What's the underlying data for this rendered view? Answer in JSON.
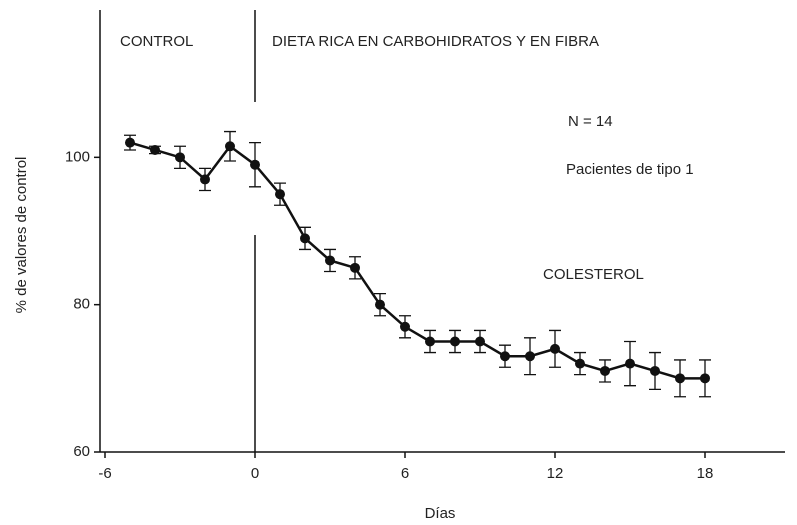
{
  "chart_data": {
    "type": "line",
    "x_label": "Días",
    "y_label": "% de valores de control",
    "annotations": [
      "CONTROL",
      "DIETA RICA EN CARBOHIDRATOS Y EN FIBRA",
      "N = 14",
      "Pacientes de tipo 1",
      "COLESTEROL"
    ],
    "x": [
      -5,
      -4,
      -3,
      -2,
      -1,
      0,
      1,
      2,
      3,
      4,
      5,
      6,
      7,
      8,
      9,
      10,
      11,
      12,
      13,
      14,
      15,
      16,
      17,
      18
    ],
    "series": [
      {
        "name": "COLESTEROL",
        "color": "#111111",
        "values": [
          102,
          101,
          100,
          97,
          101.5,
          99,
          95,
          89,
          86,
          85,
          80,
          77,
          75,
          75,
          75,
          73,
          73,
          74,
          72,
          71,
          72,
          71,
          70,
          70
        ],
        "errors": [
          1,
          0.5,
          1.5,
          1.5,
          2,
          3,
          1.5,
          1.5,
          1.5,
          1.5,
          1.5,
          1.5,
          1.5,
          1.5,
          1.5,
          1.5,
          2.5,
          2.5,
          1.5,
          1.5,
          3,
          2.5,
          2.5,
          2.5
        ]
      }
    ],
    "xlim": [
      -6.2,
      21.2
    ],
    "ylim": [
      60,
      120
    ],
    "xticks": [
      -6,
      0,
      6,
      12,
      18
    ],
    "yticks": [
      60,
      80,
      100
    ],
    "grid": false
  }
}
